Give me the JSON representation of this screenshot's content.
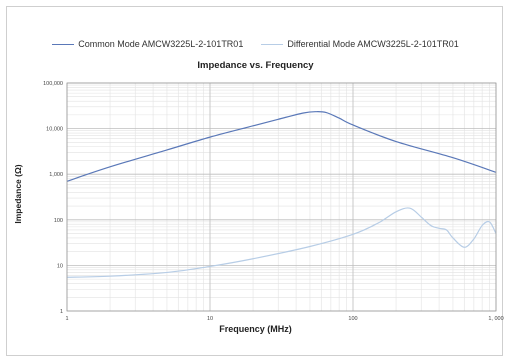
{
  "chart_data": {
    "type": "line",
    "title": "Impedance vs. Frequency",
    "xlabel": "Frequency (MHz)",
    "ylabel": "Impedance (Ω)",
    "x_scale": "log",
    "y_scale": "log",
    "xlim": [
      1,
      1000
    ],
    "ylim": [
      1,
      100000
    ],
    "grid": true,
    "legend_position": "top",
    "x_tick_labels": [
      "1",
      "10",
      "100",
      "1, 000"
    ],
    "y_tick_labels": [
      "1",
      "10",
      "100",
      "1,000",
      "10,000",
      "100,000"
    ],
    "series": [
      {
        "name": "Common Mode AMCW3225L-2-101TR01",
        "color": "#5a78b8",
        "x": [
          1,
          2,
          5,
          10,
          20,
          30,
          45,
          55,
          65,
          80,
          100,
          200,
          500,
          1000
        ],
        "y": [
          700,
          1450,
          3400,
          6500,
          11500,
          16000,
          22000,
          23500,
          22500,
          17000,
          12000,
          5200,
          2300,
          1100
        ]
      },
      {
        "name": "Differential Mode AMCW3225L-2-101TR01",
        "color": "#b7cde6",
        "x": [
          1,
          2,
          5,
          10,
          20,
          50,
          100,
          150,
          200,
          250,
          300,
          350,
          400,
          450,
          500,
          600,
          700,
          800,
          900,
          1000
        ],
        "y": [
          5.5,
          5.8,
          7,
          9.5,
          14,
          26,
          48,
          85,
          150,
          180,
          115,
          75,
          65,
          60,
          40,
          25,
          38,
          75,
          90,
          50
        ]
      }
    ]
  }
}
